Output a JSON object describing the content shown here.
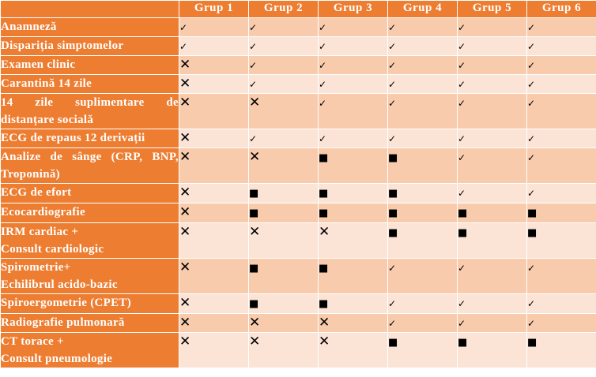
{
  "groups": [
    "Grup 1",
    "Grup 2",
    "Grup 3",
    "Grup 4",
    "Grup 5",
    "Grup 6"
  ],
  "symbols": {
    "check": "✓",
    "cross": "✕",
    "square": "■"
  },
  "rows": [
    {
      "label": "Anamneză",
      "cells": [
        "check",
        "check",
        "check",
        "check",
        "check",
        "check"
      ]
    },
    {
      "label": "Dispariția simptomelor",
      "cells": [
        "check",
        "check",
        "check",
        "check",
        "check",
        "check"
      ]
    },
    {
      "label": "Examen clinic",
      "cells": [
        "cross",
        "check",
        "check",
        "check",
        "check",
        "check"
      ]
    },
    {
      "label": "Carantină 14 zile",
      "cells": [
        "cross",
        "check",
        "check",
        "check",
        "check",
        "check"
      ]
    },
    {
      "label": "14 zile suplimentare de distanțare socială",
      "cells": [
        "cross",
        "cross",
        "check",
        "check",
        "check",
        "check"
      ]
    },
    {
      "label": "ECG de repaus 12 derivații",
      "cells": [
        "cross",
        "check",
        "check",
        "check",
        "check",
        "check"
      ]
    },
    {
      "label": "Analize de sânge (CRP, BNP, Troponină)",
      "cells": [
        "cross",
        "cross",
        "square",
        "square",
        "check",
        "check"
      ]
    },
    {
      "label": "ECG de efort",
      "cells": [
        "cross",
        "square",
        "square",
        "square",
        "check",
        "check"
      ]
    },
    {
      "label": "Ecocardiografie",
      "cells": [
        "cross",
        "square",
        "square",
        "square",
        "square",
        "square"
      ]
    },
    {
      "label": "IRM cardiac +\nConsult cardiologic",
      "cells": [
        "cross",
        "cross",
        "cross",
        "square",
        "square",
        "square"
      ]
    },
    {
      "label": "Spirometrie+\nEchilibrul acido-bazic",
      "cells": [
        "cross",
        "square",
        "square",
        "check",
        "check",
        "check"
      ]
    },
    {
      "label": "Spiroergometrie (CPET)",
      "cells": [
        "cross",
        "square",
        "square",
        "check",
        "check",
        "check"
      ]
    },
    {
      "label": "Radiografie pulmonară",
      "cells": [
        "cross",
        "cross",
        "cross",
        "check",
        "check",
        "check"
      ]
    },
    {
      "label": "CT torace +\nConsult pneumologie",
      "cells": [
        "cross",
        "cross",
        "cross",
        "square",
        "square",
        "square"
      ]
    }
  ],
  "colors": {
    "header_orange": "#ed7d31",
    "row_light_a": "#f8cbad",
    "row_light_b": "#fbe4d5"
  }
}
